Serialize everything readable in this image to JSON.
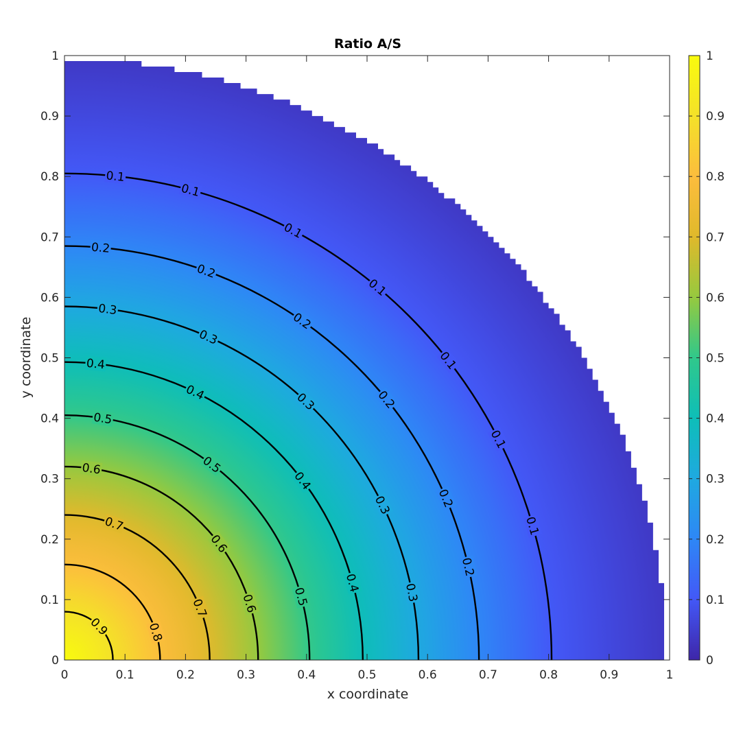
{
  "chart_data": {
    "type": "heatmap",
    "subtype": "filled quarter-disc with labeled contour lines",
    "title": "Ratio A/S",
    "xlabel": "x coordinate",
    "ylabel": "y coordinate",
    "xlim": [
      0,
      1
    ],
    "ylim": [
      0,
      1
    ],
    "xticks": [
      "0",
      "0.1",
      "0.2",
      "0.3",
      "0.4",
      "0.5",
      "0.6",
      "0.7",
      "0.8",
      "0.9",
      "1"
    ],
    "yticks": [
      "0",
      "0.1",
      "0.2",
      "0.3",
      "0.4",
      "0.5",
      "0.6",
      "0.7",
      "0.8",
      "0.9",
      "1"
    ],
    "domain": "quarter disc x^2 + y^2 <= 1 (x >= 0, y >= 0)",
    "field": "radially symmetric value, 1 at origin decreasing to ~0.03 at r = 1",
    "colormap": "parula",
    "colormap_stops": [
      "#3e26a8",
      "#4358f7",
      "#2e87f6",
      "#1fa9e0",
      "#0ebeb8",
      "#30c88b",
      "#96c93f",
      "#e0b92b",
      "#fcbd3d",
      "#f4e129",
      "#f9fb0e"
    ],
    "colorbar": {
      "range": [
        0,
        1
      ],
      "ticks": [
        "0",
        "0.1",
        "0.2",
        "0.3",
        "0.4",
        "0.5",
        "0.6",
        "0.7",
        "0.8",
        "0.9",
        "1"
      ],
      "placement": "right"
    },
    "contours": [
      {
        "level": "0.1",
        "radius": 0.805,
        "labels": [
          {
            "angle": 84
          },
          {
            "angle": 75
          },
          {
            "angle": 62
          },
          {
            "angle": 50
          },
          {
            "angle": 38
          },
          {
            "angle": 27
          },
          {
            "angle": 16
          }
        ]
      },
      {
        "level": "0.2",
        "radius": 0.685,
        "labels": [
          {
            "angle": 85
          },
          {
            "angle": 70
          },
          {
            "angle": 55
          },
          {
            "angle": 39
          },
          {
            "angle": 23
          },
          {
            "angle": 13
          }
        ]
      },
      {
        "level": "0.3",
        "radius": 0.585,
        "labels": [
          {
            "angle": 83
          },
          {
            "angle": 66
          },
          {
            "angle": 47
          },
          {
            "angle": 26
          },
          {
            "angle": 11
          }
        ]
      },
      {
        "level": "0.4",
        "radius": 0.493,
        "labels": [
          {
            "angle": 84
          },
          {
            "angle": 64
          },
          {
            "angle": 37
          },
          {
            "angle": 15
          }
        ]
      },
      {
        "level": "0.5",
        "radius": 0.405,
        "labels": [
          {
            "angle": 81
          },
          {
            "angle": 53
          },
          {
            "angle": 15
          }
        ]
      },
      {
        "level": "0.6",
        "radius": 0.32,
        "labels": [
          {
            "angle": 82
          },
          {
            "angle": 37
          },
          {
            "angle": 17
          }
        ]
      },
      {
        "level": "0.7",
        "radius": 0.24,
        "labels": [
          {
            "angle": 70
          },
          {
            "angle": 21
          }
        ]
      },
      {
        "level": "0.8",
        "radius": 0.158,
        "labels": [
          {
            "angle": 17
          }
        ]
      },
      {
        "level": "0.9",
        "radius": 0.08,
        "labels": [
          {
            "angle": 44
          }
        ]
      }
    ],
    "colors": {
      "background": "#ffffff",
      "axis": "#262626",
      "contour": "#000000"
    },
    "grid": false
  }
}
